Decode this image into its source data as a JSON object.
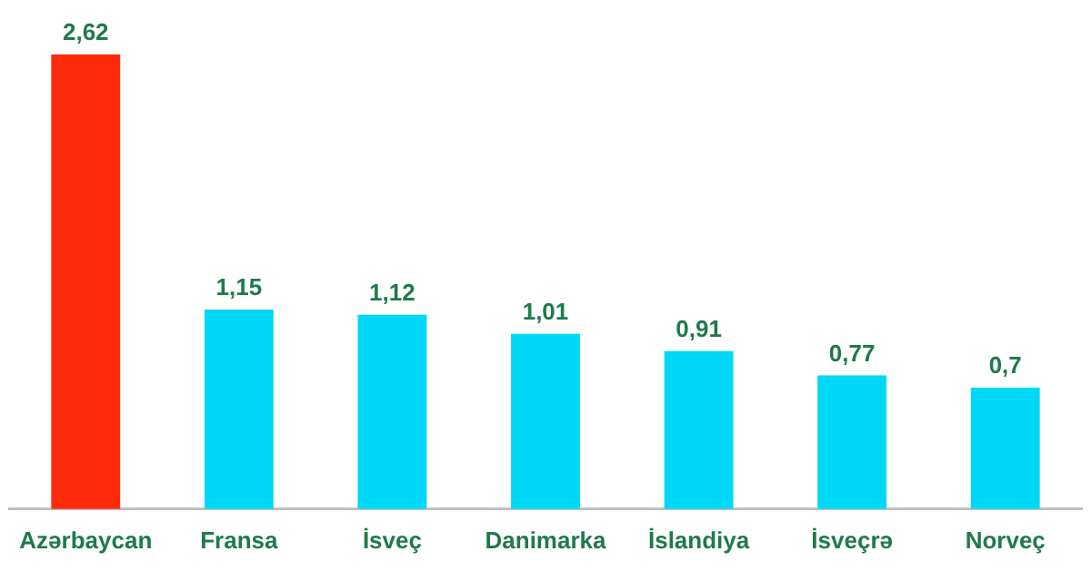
{
  "chart_data": {
    "type": "bar",
    "categories": [
      "Azərbaycan",
      "Fransa",
      "İsveç",
      "Danimarka",
      "İslandiya",
      "İsveçrə",
      "Norveç"
    ],
    "values": [
      2.62,
      1.15,
      1.12,
      1.01,
      0.91,
      0.77,
      0.7
    ],
    "colors": [
      "#ff2a0a",
      "#00d8f8",
      "#00d8f8",
      "#00d8f8",
      "#00d8f8",
      "#00d8f8",
      "#00d8f8"
    ],
    "value_labels": [
      "2,62",
      "1,15",
      "1,12",
      "1,01",
      "0,91",
      "0,77",
      "0,7"
    ],
    "grid": false,
    "legend": false
  }
}
